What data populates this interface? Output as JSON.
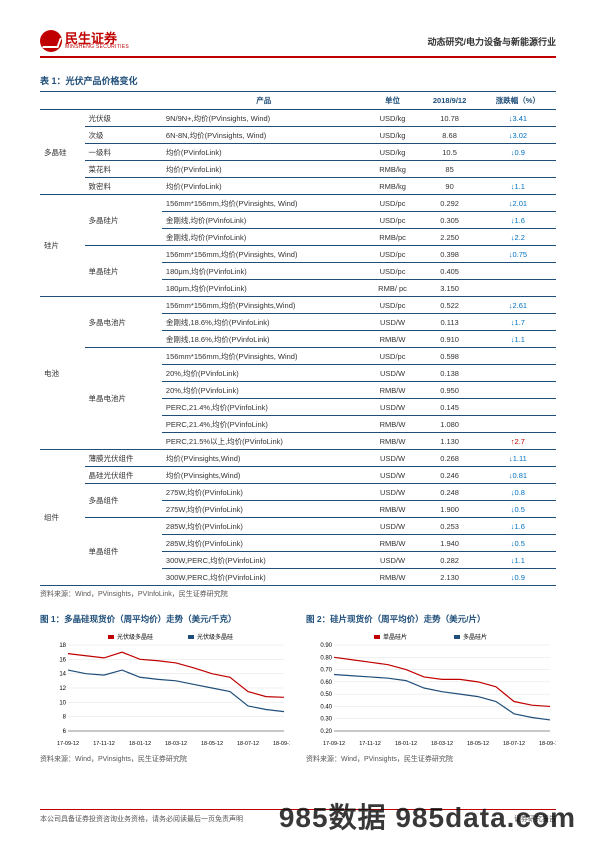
{
  "header": {
    "logo_cn": "民生证券",
    "logo_en": "MINSHENG SECURITIES",
    "right": "动态研究/电力设备与新能源行业"
  },
  "table": {
    "title": "表 1：光伏产品价格变化",
    "columns": [
      "",
      "产品",
      "单位",
      "2018/9/12",
      "涨跌幅（%）"
    ],
    "groups": [
      {
        "cat": "多晶硅",
        "rows": [
          {
            "sub": "光伏级",
            "prod": "9N/9N+,均价(PVinsights, Wind)",
            "unit": "USD/kg",
            "val": "10.78",
            "chg": "↓3.41",
            "dir": "down"
          },
          {
            "sub": "次级",
            "prod": "6N-8N,均价(PVinsights, Wind)",
            "unit": "USD/kg",
            "val": "8.68",
            "chg": "↓3.02",
            "dir": "down"
          },
          {
            "sub": "一级料",
            "prod": "均价(PVinfoLink)",
            "unit": "USD/kg",
            "val": "10.5",
            "chg": "↓0.9",
            "dir": "down"
          },
          {
            "sub": "菜花料",
            "prod": "均价(PVinfoLink)",
            "unit": "RMB/kg",
            "val": "85",
            "chg": "",
            "dir": ""
          },
          {
            "sub": "致密料",
            "prod": "均价(PVinfoLink)",
            "unit": "RMB/kg",
            "val": "90",
            "chg": "↓1.1",
            "dir": "down"
          }
        ]
      },
      {
        "cat": "硅片",
        "subgroups": [
          {
            "sub": "多晶硅片",
            "rows": [
              {
                "prod": "156mm*156mm,均价(PVinsights, Wind)",
                "unit": "USD/pc",
                "val": "0.292",
                "chg": "↓2.01",
                "dir": "down"
              },
              {
                "prod": "金刚线,均价(PVinfoLink)",
                "unit": "USD/pc",
                "val": "0.305",
                "chg": "↓1.6",
                "dir": "down"
              },
              {
                "prod": "金刚线,均价(PVinfoLink)",
                "unit": "RMB/pc",
                "val": "2.250",
                "chg": "↓2.2",
                "dir": "down"
              }
            ]
          },
          {
            "sub": "单晶硅片",
            "rows": [
              {
                "prod": "156mm*156mm,均价(PVinsights, Wind)",
                "unit": "USD/pc",
                "val": "0.398",
                "chg": "↓0.75",
                "dir": "down"
              },
              {
                "prod": "180μm,均价(PVinfoLink)",
                "unit": "USD/pc",
                "val": "0.405",
                "chg": "",
                "dir": ""
              },
              {
                "prod": "180μm,均价(PVinfoLink)",
                "unit": "RMB/ pc",
                "val": "3.150",
                "chg": "",
                "dir": ""
              }
            ]
          }
        ]
      },
      {
        "cat": "电池",
        "subgroups": [
          {
            "sub": "多晶电池片",
            "rows": [
              {
                "prod": "156mm*156mm,均价(PVinsights,Wind)",
                "unit": "USD/pc",
                "val": "0.522",
                "chg": "↓2.61",
                "dir": "down"
              },
              {
                "prod": "金刚线,18.6%,均价(PVinfoLink)",
                "unit": "USD/W",
                "val": "0.113",
                "chg": "↓1.7",
                "dir": "down"
              },
              {
                "prod": "金刚线,18.6%,均价(PVinfoLink)",
                "unit": "RMB/W",
                "val": "0.910",
                "chg": "↓1.1",
                "dir": "down"
              }
            ]
          },
          {
            "sub": "单晶电池片",
            "rows": [
              {
                "prod": "156mm*156mm,均价(PVinsights, Wind)",
                "unit": "USD/pc",
                "val": "0.598",
                "chg": "",
                "dir": ""
              },
              {
                "prod": "20%,均价(PVinfoLink)",
                "unit": "USD/W",
                "val": "0.138",
                "chg": "",
                "dir": ""
              },
              {
                "prod": "20%,均价(PVinfoLink)",
                "unit": "RMB/W",
                "val": "0.950",
                "chg": "",
                "dir": ""
              },
              {
                "prod": "PERC,21.4%,均价(PVinfoLink)",
                "unit": "USD/W",
                "val": "0.145",
                "chg": "",
                "dir": ""
              },
              {
                "prod": "PERC,21.4%,均价(PVinfoLink)",
                "unit": "RMB/W",
                "val": "1.080",
                "chg": "",
                "dir": ""
              },
              {
                "prod": "PERC,21.5%以上,均价(PVinfoLink)",
                "unit": "RMB/W",
                "val": "1.130",
                "chg": "↑2.7",
                "dir": "up"
              }
            ]
          }
        ]
      },
      {
        "cat": "组件",
        "subgroups": [
          {
            "sub": "薄膜光伏组件",
            "rows": [
              {
                "prod": "均价(PVinsights,Wind)",
                "unit": "USD/W",
                "val": "0.268",
                "chg": "↓1.11",
                "dir": "down"
              }
            ]
          },
          {
            "sub": "晶硅光伏组件",
            "rows": [
              {
                "prod": "均价(PVinsights,Wind)",
                "unit": "USD/W",
                "val": "0.246",
                "chg": "↓0.81",
                "dir": "down"
              }
            ]
          },
          {
            "sub": "多晶组件",
            "rows": [
              {
                "prod": "275W,均价(PVinfoLink)",
                "unit": "USD/W",
                "val": "0.248",
                "chg": "↓0.8",
                "dir": "down"
              },
              {
                "prod": "275W,均价(PVinfoLink)",
                "unit": "RMB/W",
                "val": "1.900",
                "chg": "↓0.5",
                "dir": "down"
              }
            ]
          },
          {
            "sub": "单晶组件",
            "rows": [
              {
                "prod": "285W,均价(PVinfoLink)",
                "unit": "USD/W",
                "val": "0.253",
                "chg": "↓1.6",
                "dir": "down"
              },
              {
                "prod": "285W,均价(PVinfoLink)",
                "unit": "RMB/W",
                "val": "1.940",
                "chg": "↓0.5",
                "dir": "down"
              },
              {
                "prod": "300W,PERC,均价(PVinfoLink)",
                "unit": "USD/W",
                "val": "0.282",
                "chg": "↓1.1",
                "dir": "down"
              },
              {
                "prod": "300W,PERC,均价(PVinfoLink)",
                "unit": "RMB/W",
                "val": "2.130",
                "chg": "↓0.9",
                "dir": "down"
              }
            ]
          }
        ]
      }
    ],
    "source": "资料来源：Wind，PVinsights，PVInfoLink，民生证券研究院"
  },
  "chart1": {
    "title": "图 1：多晶硅现货价（周平均价）走势（美元/千克）",
    "legend": [
      "光伏级多晶硅",
      "光伏级多晶硅"
    ],
    "x_labels": [
      "17-09-12",
      "17-11-12",
      "18-01-12",
      "18-03-12",
      "18-05-12",
      "18-07-12",
      "18-09-12"
    ],
    "y_ticks": [
      6,
      8,
      10,
      12,
      14,
      16,
      18
    ],
    "series": [
      {
        "color": "#c00000",
        "values": [
          16.8,
          16.5,
          16.2,
          17.0,
          16.0,
          15.8,
          15.5,
          14.8,
          14.0,
          13.5,
          11.5,
          10.8,
          10.7
        ]
      },
      {
        "color": "#1f4e79",
        "values": [
          14.5,
          14.0,
          13.8,
          14.5,
          13.5,
          13.2,
          13.0,
          12.5,
          12.0,
          11.5,
          9.5,
          9.0,
          8.7
        ]
      }
    ],
    "source": "资料来源：Wind，PVinsights，民生证券研究院",
    "background_color": "#ffffff",
    "grid_color": "#d9d9d9",
    "label_fontsize": 6
  },
  "chart2": {
    "title": "图 2：硅片现货价（周平均价）走势（美元/片）",
    "legend": [
      "单晶硅片",
      "多晶硅片"
    ],
    "x_labels": [
      "17-09-12",
      "17-11-12",
      "18-01-12",
      "18-03-12",
      "18-05-12",
      "18-07-12",
      "18-09-12"
    ],
    "y_ticks": [
      0.2,
      0.3,
      0.4,
      0.5,
      0.6,
      0.7,
      0.8,
      0.9
    ],
    "series": [
      {
        "color": "#c00000",
        "values": [
          0.8,
          0.78,
          0.76,
          0.74,
          0.7,
          0.64,
          0.62,
          0.62,
          0.6,
          0.56,
          0.44,
          0.41,
          0.4
        ]
      },
      {
        "color": "#1f4e79",
        "values": [
          0.66,
          0.65,
          0.64,
          0.63,
          0.61,
          0.55,
          0.52,
          0.5,
          0.48,
          0.44,
          0.34,
          0.31,
          0.29
        ]
      }
    ],
    "source": "资料来源：Wind，PVinsights，民生证券研究院",
    "background_color": "#ffffff",
    "grid_color": "#d9d9d9",
    "label_fontsize": 6
  },
  "footer": {
    "left": "本公司具备证券投资咨询业务资格，请务必阅读最后一页免责声明",
    "right": "证券研究报告"
  },
  "watermark": "985数据 985data.com"
}
